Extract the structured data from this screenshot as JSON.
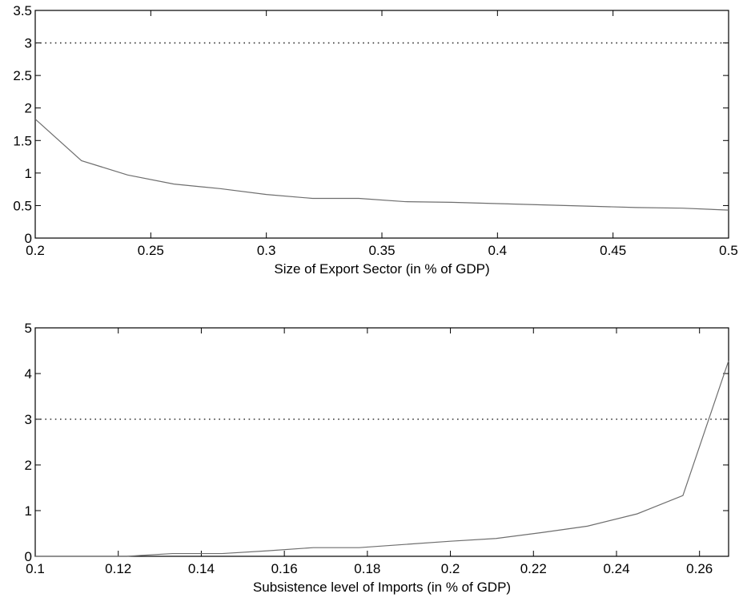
{
  "chart_data": [
    {
      "type": "line",
      "title": "",
      "xlabel": "Size of Export Sector (in % of GDP)",
      "ylabel": "",
      "xlim": [
        0.2,
        0.5
      ],
      "ylim": [
        0,
        3.5
      ],
      "xticks": [
        "0.2",
        "0.25",
        "0.3",
        "0.35",
        "0.4",
        "0.45",
        "0.5"
      ],
      "yticks": [
        "0",
        "0.5",
        "1",
        "1.5",
        "2",
        "2.5",
        "3",
        "3.5"
      ],
      "grid": false,
      "reference_line": {
        "y": 3,
        "style": "dotted"
      },
      "series": [
        {
          "x": [
            0.2,
            0.22,
            0.24,
            0.26,
            0.28,
            0.3,
            0.32,
            0.34,
            0.36,
            0.38,
            0.4,
            0.42,
            0.44,
            0.46,
            0.48,
            0.5
          ],
          "y": [
            1.83,
            1.19,
            0.97,
            0.83,
            0.76,
            0.67,
            0.61,
            0.61,
            0.56,
            0.55,
            0.53,
            0.51,
            0.49,
            0.47,
            0.46,
            0.43
          ]
        }
      ]
    },
    {
      "type": "line",
      "title": "",
      "xlabel": "Subsistence level of Imports (in % of GDP)",
      "ylabel": "",
      "xlim": [
        0.1,
        0.267
      ],
      "ylim": [
        0,
        5
      ],
      "xticks": [
        "0.1",
        "0.12",
        "0.14",
        "0.16",
        "0.18",
        "0.2",
        "0.22",
        "0.24",
        "0.26"
      ],
      "yticks": [
        "0",
        "1",
        "2",
        "3",
        "4",
        "5"
      ],
      "grid": false,
      "reference_line": {
        "y": 3,
        "style": "dotted"
      },
      "series": [
        {
          "x": [
            0.1,
            0.111,
            0.122,
            0.133,
            0.145,
            0.156,
            0.167,
            0.178,
            0.189,
            0.2,
            0.211,
            0.222,
            0.233,
            0.245,
            0.256,
            0.267
          ],
          "y": [
            0.0,
            0.0,
            0.0,
            0.06,
            0.06,
            0.12,
            0.19,
            0.19,
            0.26,
            0.33,
            0.39,
            0.52,
            0.66,
            0.93,
            1.33,
            4.28
          ]
        }
      ]
    }
  ]
}
